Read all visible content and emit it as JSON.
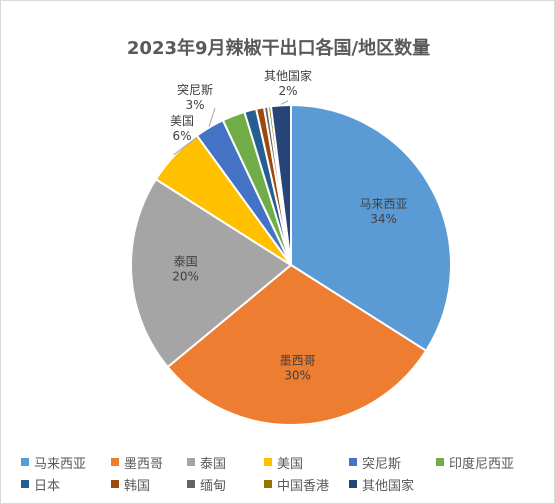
{
  "chart_data": {
    "type": "pie",
    "title": "2023年9月辣椒干出口各国/地区数量",
    "slices": [
      {
        "name": "马来西亚",
        "value": 34,
        "label": "34%",
        "color": "#5b9bd5",
        "show_label": true
      },
      {
        "name": "墨西哥",
        "value": 30,
        "label": "30%",
        "color": "#ed7d31",
        "show_label": true
      },
      {
        "name": "泰国",
        "value": 20,
        "label": "20%",
        "color": "#a5a5a5",
        "show_label": true
      },
      {
        "name": "美国",
        "value": 6,
        "label": "6%",
        "color": "#ffc000",
        "show_label": true
      },
      {
        "name": "突尼斯",
        "value": 3,
        "label": "3%",
        "color": "#4472c4",
        "show_label": true
      },
      {
        "name": "印度尼西亚",
        "value": 2.3,
        "label": "",
        "color": "#70ad47",
        "show_label": false
      },
      {
        "name": "日本",
        "value": 1.2,
        "label": "",
        "color": "#255e91",
        "show_label": false
      },
      {
        "name": "韩国",
        "value": 0.8,
        "label": "",
        "color": "#9e480e",
        "show_label": false
      },
      {
        "name": "缅甸",
        "value": 0.4,
        "label": "",
        "color": "#636363",
        "show_label": false
      },
      {
        "name": "中国香港",
        "value": 0.3,
        "label": "",
        "color": "#997300",
        "show_label": false
      },
      {
        "name": "其他国家",
        "value": 2,
        "label": "2%",
        "color": "#264478",
        "show_label": true
      }
    ],
    "legend_position": "bottom"
  }
}
